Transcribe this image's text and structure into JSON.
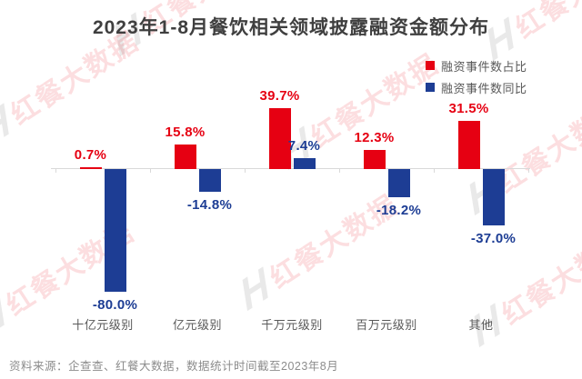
{
  "title": "2023年1-8月餐饮相关领域披露融资金额分布",
  "legend": [
    {
      "label": "融资事件数占比",
      "color": "#e60012"
    },
    {
      "label": "融资事件数同比",
      "color": "#1d3d94"
    }
  ],
  "footer": "资料来源：企查查、红餐大数据，数据统计时间截至2023年8月",
  "watermark": {
    "logo": "H",
    "text": "红餐大数据"
  },
  "chart_data": {
    "type": "bar",
    "categories": [
      "十亿元级别",
      "亿元级别",
      "千万元级别",
      "百万元级别",
      "其他"
    ],
    "series": [
      {
        "name": "融资事件数占比",
        "color": "#e60012",
        "values": [
          0.7,
          15.8,
          39.7,
          12.3,
          31.5
        ],
        "labels": [
          "0.7%",
          "15.8%",
          "39.7%",
          "12.3%",
          "31.5%"
        ]
      },
      {
        "name": "融资事件数同比",
        "color": "#1d3d94",
        "values": [
          -80.0,
          -14.8,
          7.4,
          -18.2,
          -37.0
        ],
        "labels": [
          "-80.0%",
          "-14.8%",
          "7.4%",
          "-18.2%",
          "-37.0%"
        ]
      }
    ],
    "value_suffix": "%",
    "ylim": [
      -90,
      45
    ],
    "grid": false,
    "baseline": 0,
    "legend_position": "top-right"
  }
}
